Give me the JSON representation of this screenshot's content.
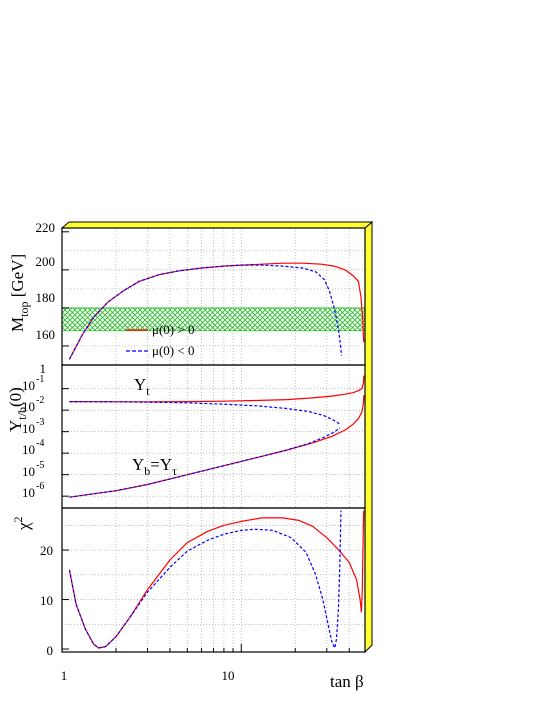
{
  "x_axis": {
    "label": "tan β",
    "scale": "log",
    "range": [
      1,
      50
    ],
    "tick_labels": [
      "1",
      "10"
    ],
    "tick_values": [
      1,
      10
    ]
  },
  "panels": {
    "mtop": {
      "ylabel_main": "M",
      "ylabel_sub": "top",
      "ylabel_unit": " [GeV]",
      "tick_labels": [
        "160",
        "180",
        "200",
        "220"
      ],
      "band": {
        "range": [
          168,
          180
        ],
        "color": "#22bb22"
      },
      "legend": [
        {
          "label": "μ(0) > 0",
          "color": "#ff0000",
          "dash": "solid"
        },
        {
          "label": "μ(0) < 0",
          "color": "#0000ff",
          "dash": "dashed"
        }
      ]
    },
    "yukawa": {
      "ylabel_main": "Y",
      "ylabel_sub": "t/b",
      "ylabel_arg": "(0)",
      "tick_base": "10",
      "tick_first": "1",
      "tick_exponents": [
        "-1",
        "-2",
        "-3",
        "-4",
        "-5",
        "-6"
      ],
      "annotation_top": {
        "main": "Y",
        "sub": "t"
      },
      "annotation_bottom": {
        "main1": "Y",
        "sub1": "b",
        "eq": "=",
        "main2": "Y",
        "sub2": "τ"
      }
    },
    "chi2": {
      "ylabel_main": "χ",
      "ylabel_sup": "2",
      "tick_labels": [
        "0",
        "10",
        "20"
      ]
    }
  },
  "colors": {
    "mu_pos": "#ff0000",
    "mu_neg": "#0000ff",
    "grid": "#999999",
    "frame_3d": "#ffff33"
  },
  "chart_data": [
    {
      "type": "line",
      "ylabel": "M_top [GeV]",
      "ylim": [
        150,
        220
      ],
      "xscale": "log",
      "series": [
        {
          "name": "μ(0) > 0",
          "x": [
            1.1,
            1.3,
            1.5,
            1.8,
            2.2,
            2.7,
            3.5,
            4.5,
            6,
            8,
            10,
            13,
            17,
            22,
            28,
            33,
            38,
            42,
            45,
            46.5,
            47.5,
            48.2
          ],
          "y": [
            153,
            166,
            175,
            183,
            189,
            194,
            197.5,
            199.5,
            201,
            202,
            202.5,
            203,
            203.5,
            203.5,
            203,
            202,
            200,
            197,
            194,
            186,
            175,
            162
          ]
        },
        {
          "name": "μ(0) < 0",
          "x": [
            1.1,
            1.3,
            1.5,
            1.8,
            2.2,
            2.7,
            3.5,
            4.5,
            6,
            8,
            10,
            13,
            17,
            22,
            26,
            29,
            31,
            33,
            34.5,
            35.5,
            36.3
          ],
          "y": [
            153,
            166,
            175,
            183,
            189,
            194,
            197.5,
            199.5,
            201,
            202,
            202.5,
            202.5,
            202,
            201,
            199,
            195,
            189,
            180,
            171,
            163,
            155
          ]
        }
      ]
    },
    {
      "type": "line",
      "ylabel": "Y_t/b(0)",
      "yscale": "log",
      "ylim": [
        5e-07,
        1
      ],
      "xscale": "log",
      "series": [
        {
          "name": "μ(0) > 0",
          "x": [
            1.1,
            2,
            3,
            5,
            8,
            12,
            18,
            25,
            32,
            38,
            42,
            45,
            47,
            48,
            48.3
          ],
          "y": [
            0.025,
            0.0245,
            0.0245,
            0.025,
            0.026,
            0.028,
            0.031,
            0.037,
            0.045,
            0.055,
            0.065,
            0.08,
            0.1,
            0.18,
            0.4
          ]
        },
        {
          "name": "μ(0) < 0",
          "x": [
            1.1,
            2,
            3,
            5,
            8,
            12,
            18,
            24,
            29,
            33,
            35.5
          ],
          "y": [
            0.025,
            0.0245,
            0.0235,
            0.022,
            0.019,
            0.016,
            0.012,
            0.0085,
            0.0055,
            0.0033,
            0.0022
          ]
        },
        {
          "name": "μ(0) > 0",
          "x": [
            1.1,
            2,
            3,
            5,
            8,
            12,
            18,
            25,
            32,
            38,
            42,
            45,
            47,
            48,
            48.3
          ],
          "y": [
            9e-07,
            1.8e-06,
            3.5e-06,
            1e-05,
            2.6e-05,
            6e-05,
            0.00014,
            0.0003,
            0.0006,
            0.0012,
            0.0022,
            0.004,
            0.008,
            0.02,
            0.05
          ]
        },
        {
          "name": "μ(0) < 0",
          "x": [
            1.1,
            2,
            3,
            5,
            8,
            12,
            18,
            24,
            29,
            33,
            35.5
          ],
          "y": [
            9e-07,
            1.8e-06,
            3.5e-06,
            1e-05,
            2.6e-05,
            6e-05,
            0.00014,
            0.00029,
            0.00055,
            0.00095,
            0.0015
          ]
        }
      ]
    },
    {
      "type": "line",
      "ylabel": "χ²",
      "ylim": [
        0,
        28
      ],
      "xscale": "log",
      "series": [
        {
          "name": "μ(0) > 0",
          "x": [
            1.1,
            1.2,
            1.35,
            1.5,
            1.6,
            1.75,
            2,
            2.4,
            3,
            4,
            5,
            6.5,
            8,
            10,
            13,
            17,
            21,
            25,
            30,
            35,
            40,
            44,
            46,
            46.8,
            47.3,
            47.8,
            48.2
          ],
          "y": [
            16,
            9,
            4,
            1,
            0.2,
            0.5,
            2.5,
            6.5,
            12,
            18,
            21.5,
            23.8,
            25,
            25.8,
            26.5,
            26.5,
            26,
            24.8,
            22.5,
            20,
            17.5,
            14,
            10,
            7.5,
            12,
            22,
            28
          ]
        },
        {
          "name": "μ(0) < 0",
          "x": [
            1.1,
            1.2,
            1.35,
            1.5,
            1.6,
            1.75,
            2,
            2.4,
            3,
            4,
            5,
            6.5,
            8,
            10,
            12,
            15,
            19,
            23,
            26,
            28.5,
            30.5,
            32,
            33.2,
            34,
            34.8,
            35.4,
            36
          ],
          "y": [
            16,
            9,
            4,
            1,
            0.2,
            0.5,
            2.5,
            6.5,
            11.5,
            16.5,
            19.8,
            22,
            23.2,
            24,
            24.2,
            24,
            22.5,
            19.5,
            15,
            10,
            5,
            1.5,
            0.2,
            2,
            8,
            16,
            28
          ]
        }
      ]
    }
  ]
}
